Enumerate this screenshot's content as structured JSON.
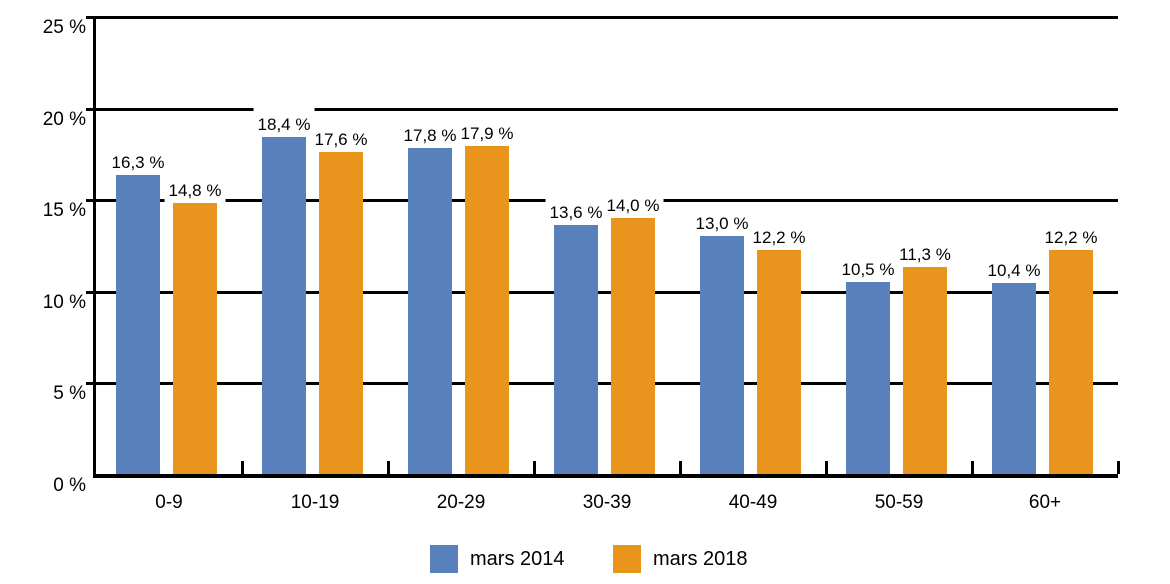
{
  "chart_data": {
    "type": "bar",
    "title": "",
    "xlabel": "",
    "ylabel": "",
    "categories": [
      "0-9",
      "10-19",
      "20-29",
      "30-39",
      "40-49",
      "50-59",
      "60+"
    ],
    "series": [
      {
        "name": "mars 2014",
        "color": "#5880BA",
        "values": [
          16.3,
          18.4,
          17.8,
          13.6,
          13.0,
          10.5,
          10.4
        ],
        "value_labels": [
          "16,3 %",
          "18,4 %",
          "17,8 %",
          "13,6 %",
          "13,0 %",
          "10,5 %",
          "10,4 %"
        ]
      },
      {
        "name": "mars 2018",
        "color": "#E8941D",
        "values": [
          14.8,
          17.6,
          17.9,
          14.0,
          12.2,
          11.3,
          12.2
        ],
        "value_labels": [
          "14,8 %",
          "17,6 %",
          "17,9 %",
          "14,0 %",
          "12,2 %",
          "11,3 %",
          "12,2 %"
        ]
      }
    ],
    "y_axis": {
      "min": 0,
      "max": 25,
      "tick_step": 5,
      "ticks": [
        0,
        5,
        10,
        15,
        20,
        25
      ],
      "tick_labels": [
        "0 %",
        "5 %",
        "10 %",
        "15 %",
        "20 %",
        "25 %"
      ]
    },
    "grid": true,
    "gridline_color": "#000000",
    "legend_position": "bottom"
  }
}
